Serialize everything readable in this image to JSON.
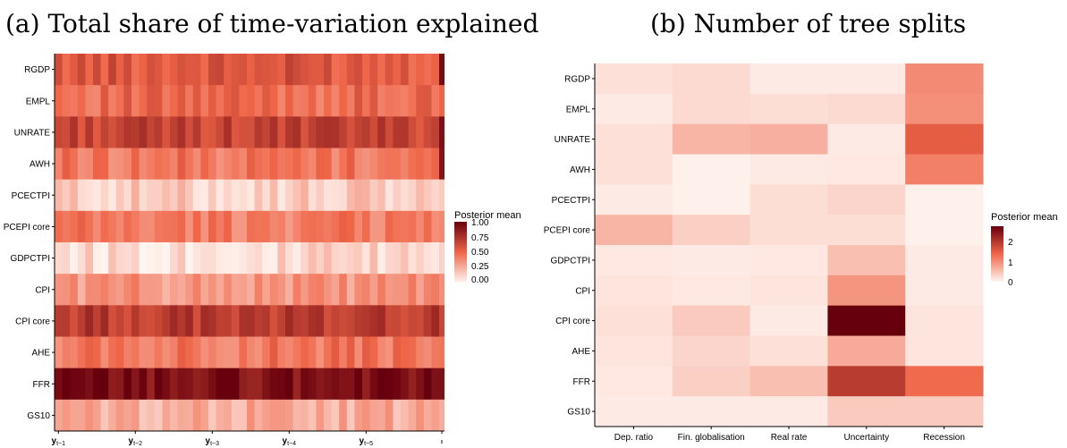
{
  "panel_a": {
    "title": "(a) Total share of time-variation explained",
    "legend": {
      "title": "Posterior mean",
      "ticks": [
        "1.00",
        "0.75",
        "0.50",
        "0.25",
        "0.00"
      ]
    }
  },
  "panel_b": {
    "title": "(b) Number of tree splits",
    "legend": {
      "title": "Posterior mean",
      "ticks": [
        "2",
        "1",
        "0"
      ]
    }
  },
  "colors": {
    "low": "#fff5f0",
    "mid": "#ef6548",
    "high": "#67000d",
    "axis": "#000000"
  },
  "chart_data": [
    {
      "type": "heatmap",
      "title": "(a) Total share of time-variation explained",
      "rows": [
        "RGDP",
        "EMPL",
        "UNRATE",
        "AWH",
        "PCECTPI",
        "PCEPI core",
        "GDPCTPI",
        "CPI",
        "CPI core",
        "AHE",
        "FFR",
        "GS10"
      ],
      "x_groups": [
        "y_{t-1}",
        "y_{t-2}",
        "y_{t-3}",
        "y_{t-4}",
        "y_{t-5}",
        "ι"
      ],
      "columns_per_group": 10,
      "row_means": [
        0.57,
        0.48,
        0.66,
        0.44,
        0.14,
        0.42,
        0.1,
        0.33,
        0.7,
        0.44,
        0.92,
        0.25
      ],
      "last_column_values": [
        0.95,
        0.5,
        0.92,
        0.9,
        0.15,
        0.38,
        0.12,
        0.35,
        0.65,
        0.45,
        0.92,
        0.25
      ],
      "color_range": [
        0,
        1
      ],
      "legend_title": "Posterior mean"
    },
    {
      "type": "heatmap",
      "title": "(b) Number of tree splits",
      "rows": [
        "RGDP",
        "EMPL",
        "UNRATE",
        "AWH",
        "PCECTPI",
        "PCEPI core",
        "GDPCTPI",
        "CPI",
        "CPI core",
        "AHE",
        "FFR",
        "GS10"
      ],
      "columns": [
        "Dep. ratio",
        "Fin. globalisation",
        "Real rate",
        "Uncertainty",
        "Recession"
      ],
      "values": [
        [
          0.2,
          0.25,
          0.1,
          0.1,
          1.0
        ],
        [
          0.1,
          0.25,
          0.22,
          0.25,
          0.95
        ],
        [
          0.2,
          0.6,
          0.65,
          0.1,
          1.45
        ],
        [
          0.2,
          0.05,
          0.1,
          0.12,
          1.1
        ],
        [
          0.1,
          0.05,
          0.22,
          0.3,
          0.05
        ],
        [
          0.6,
          0.35,
          0.22,
          0.22,
          0.05
        ],
        [
          0.12,
          0.1,
          0.12,
          0.5,
          0.1
        ],
        [
          0.15,
          0.12,
          0.15,
          0.9,
          0.1
        ],
        [
          0.2,
          0.4,
          0.1,
          2.7,
          0.15
        ],
        [
          0.15,
          0.3,
          0.2,
          0.7,
          0.15
        ],
        [
          0.12,
          0.35,
          0.5,
          1.9,
          1.3
        ],
        [
          0.1,
          0.1,
          0.1,
          0.4,
          0.4
        ]
      ],
      "color_range": [
        0,
        2.7
      ],
      "legend_title": "Posterior mean"
    }
  ]
}
